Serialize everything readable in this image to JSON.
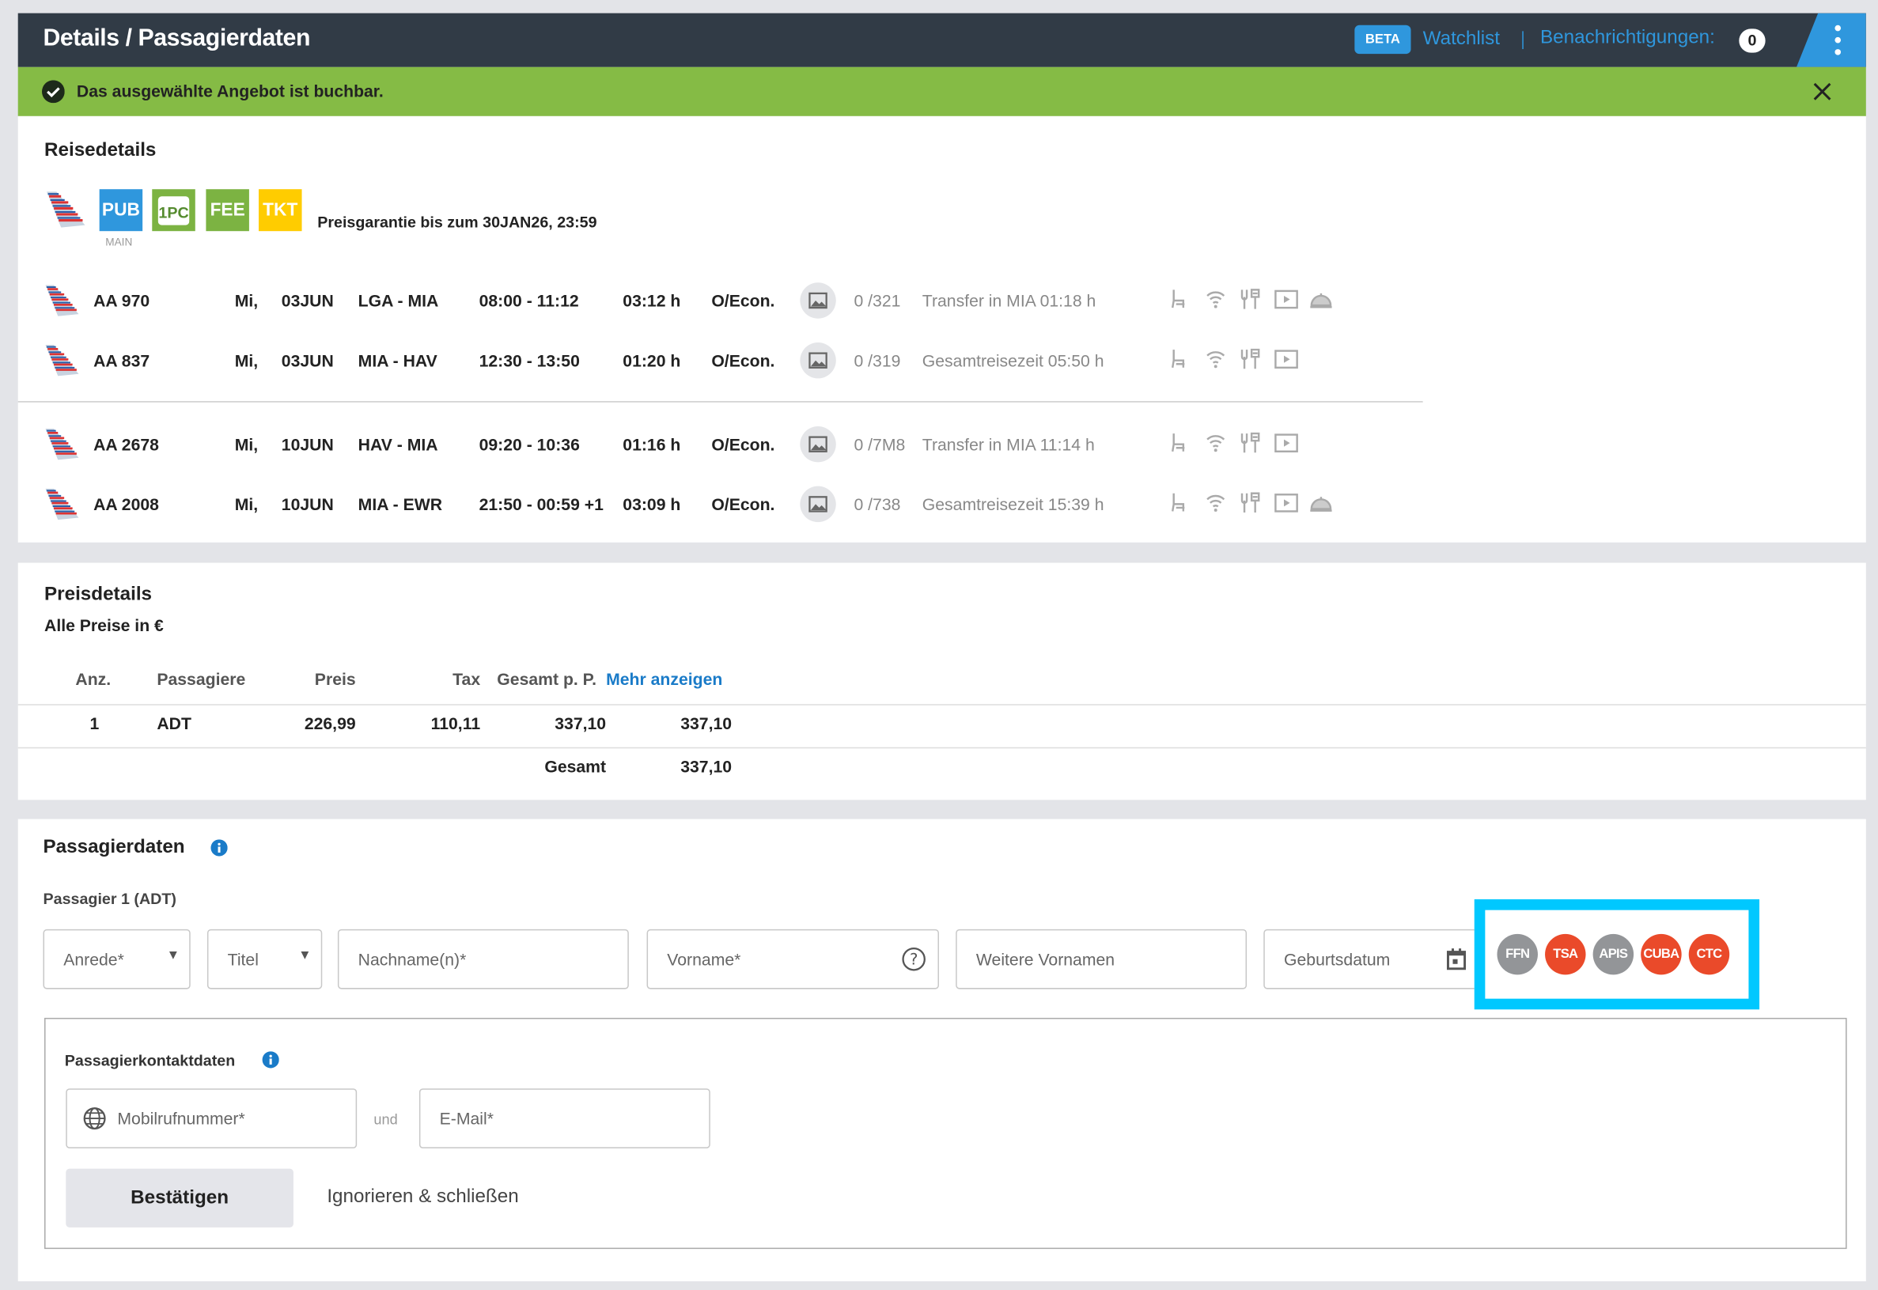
{
  "header": {
    "title": "Details / Passagierdaten",
    "beta": "BETA",
    "watchlist": "Watchlist",
    "notifications_label": "Benachrichtigungen:",
    "notifications_count": "0"
  },
  "alert": {
    "text": "Das ausgewählte Angebot ist buchbar.",
    "color": "#85bb45"
  },
  "trip": {
    "title": "Reisedetails",
    "badges": [
      {
        "label": "PUB",
        "sub": "MAIN",
        "color": "#2f97dd"
      },
      {
        "label": "1PC",
        "color": "#7cb342"
      },
      {
        "label": "FEE",
        "color": "#7cb342"
      },
      {
        "label": "TKT",
        "color": "#ffcc00"
      }
    ],
    "price_guarantee": "Preisgarantie bis zum 30JAN26,  23:59",
    "flights": [
      {
        "flight": "AA  970",
        "day": "Mi,",
        "date": "03JUN",
        "route": "LGA - MIA",
        "time": "08:00 - 11:12",
        "duration": "03:12 h",
        "class": "O/Econ.",
        "aircraft": "0 /321",
        "info": "Transfer in MIA 01:18 h",
        "amenities": [
          "seat",
          "wifi",
          "power",
          "entertainment",
          "service"
        ]
      },
      {
        "flight": "AA  837",
        "day": "Mi,",
        "date": "03JUN",
        "route": "MIA - HAV",
        "time": "12:30 - 13:50",
        "duration": "01:20 h",
        "class": "O/Econ.",
        "aircraft": "0 /319",
        "info": "Gesamtreisezeit 05:50 h",
        "amenities": [
          "seat",
          "wifi",
          "power",
          "entertainment"
        ]
      },
      {
        "flight": "AA  2678",
        "day": "Mi,",
        "date": "10JUN",
        "route": "HAV - MIA",
        "time": "09:20 - 10:36",
        "duration": "01:16 h",
        "class": "O/Econ.",
        "aircraft": "0 /7M8",
        "info": "Transfer in MIA 11:14 h",
        "amenities": [
          "seat",
          "wifi",
          "power",
          "entertainment"
        ]
      },
      {
        "flight": "AA  2008",
        "day": "Mi,",
        "date": "10JUN",
        "route": "MIA - EWR",
        "time": "21:50 - 00:59 +1",
        "duration": "03:09 h",
        "class": "O/Econ.",
        "aircraft": "0 /738",
        "info": "Gesamtreisezeit 15:39 h",
        "amenities": [
          "seat",
          "wifi",
          "power",
          "entertainment",
          "service"
        ]
      }
    ]
  },
  "prices": {
    "title": "Preisdetails",
    "currency_note": "Alle Preise in €",
    "headers": {
      "qty": "Anz.",
      "pax": "Passagiere",
      "price": "Preis",
      "tax": "Tax",
      "total_pp": "Gesamt p. P.",
      "more": "Mehr anzeigen"
    },
    "rows": [
      {
        "qty": "1",
        "pax": "ADT",
        "price": "226,99",
        "tax": "110,11",
        "total_pp": "337,10",
        "total": "337,10"
      }
    ],
    "grand_total_label": "Gesamt",
    "grand_total": "337,10"
  },
  "passenger": {
    "title": "Passagierdaten",
    "subtitle": "Passagier 1 (ADT)",
    "fields": {
      "salutation": "Anrede*",
      "title": "Titel",
      "lastname": "Nachname(n)*",
      "firstname": "Vorname*",
      "middlenames": "Weitere Vornamen",
      "birthdate": "Geburtsdatum"
    },
    "tags": [
      {
        "label": "FFN",
        "color": "#939598"
      },
      {
        "label": "TSA",
        "color": "#ea4a2a"
      },
      {
        "label": "APIS",
        "color": "#939598"
      },
      {
        "label": "CUBA",
        "color": "#ea4a2a"
      },
      {
        "label": "CTC",
        "color": "#ea4a2a"
      }
    ],
    "contact": {
      "title": "Passagierkontaktdaten",
      "mobile": "Mobilrufnummer*",
      "and": "und",
      "email": "E-Mail*",
      "confirm": "Bestätigen",
      "ignore": "Ignorieren & schließen"
    }
  }
}
